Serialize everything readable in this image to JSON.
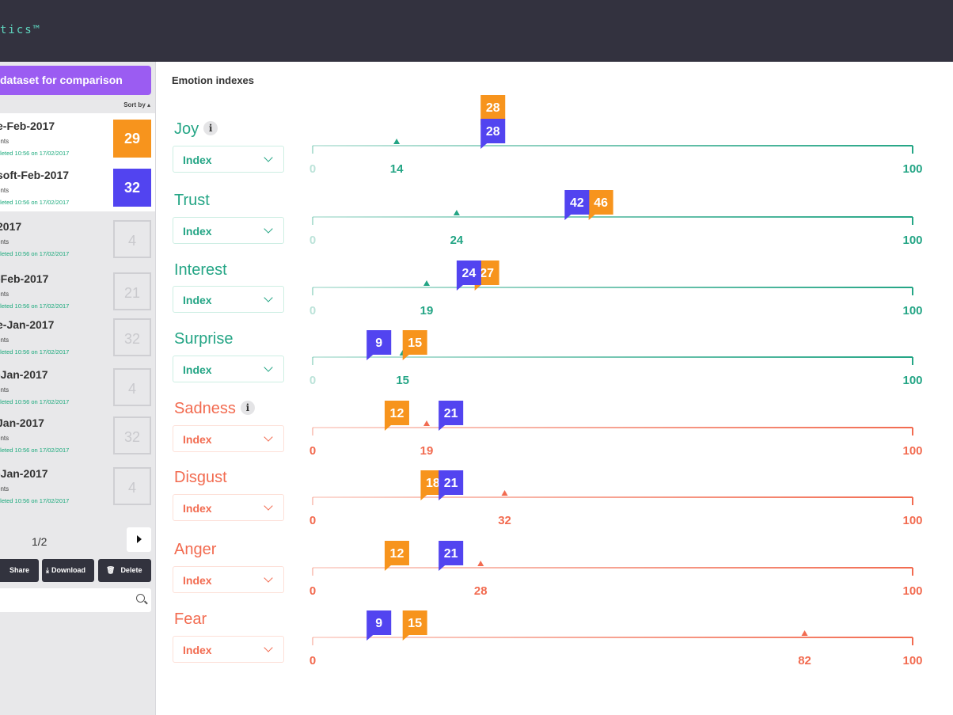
{
  "app": {
    "brand_text": "tics™"
  },
  "sidebar": {
    "add_button_label": "dataset for comparison",
    "sort_label": "Sort by ▴",
    "datasets": [
      {
        "name": "e-Feb-2017",
        "sub": "ents",
        "status": "pleted 10:56 on 17/02/2017",
        "score": "29",
        "style": "orange"
      },
      {
        "name": "soft-Feb-2017",
        "sub": "ents",
        "status": "pleted 10:56 on 17/02/2017",
        "score": "32",
        "style": "blue"
      },
      {
        "name": "2017",
        "sub": "ents",
        "status": "pleted 10:56 on 17/02/2017",
        "score": "4",
        "style": "plain"
      },
      {
        "name": "-Feb-2017",
        "sub": "ents",
        "status": "pleted 10:56 on 17/02/2017",
        "score": "21",
        "style": "plain"
      },
      {
        "name": "e-Jan-2017",
        "sub": "ents",
        "status": "pleted 10:56 on 17/02/2017",
        "score": "32",
        "style": "plain"
      },
      {
        "name": "-Jan-2017",
        "sub": "ents",
        "status": "pleted 10:56 on 17/02/2017",
        "score": "4",
        "style": "plain"
      },
      {
        "name": "Jan-2017",
        "sub": "ents",
        "status": "pleted 10:56 on 17/02/2017",
        "score": "32",
        "style": "plain"
      },
      {
        "name": "-Jan-2017",
        "sub": "ents",
        "status": "pleted 10:56 on 17/02/2017",
        "score": "4",
        "style": "plain"
      }
    ],
    "pager": "1/2",
    "actions": {
      "share": "Share",
      "download": "Download",
      "delete": "Delete"
    }
  },
  "main": {
    "title": "Emotion indexes",
    "select_value": "Index",
    "scale_min": "0",
    "scale_max": "100",
    "colors": {
      "positive": "#24a585",
      "negative": "#f26b50",
      "orange": "#f7941d",
      "blue": "#5244f0"
    },
    "emotions": [
      {
        "name": "Joy",
        "polarity": "positive",
        "info": true,
        "average": 14,
        "orange": 28,
        "blue": 28
      },
      {
        "name": "Trust",
        "polarity": "positive",
        "info": false,
        "average": 24,
        "orange": 46,
        "blue": 42
      },
      {
        "name": "Interest",
        "polarity": "positive",
        "info": false,
        "average": 19,
        "orange": 27,
        "blue": 24
      },
      {
        "name": "Surprise",
        "polarity": "positive",
        "info": false,
        "average": 15,
        "orange": 15,
        "blue": 9
      },
      {
        "name": "Sadness",
        "polarity": "negative",
        "info": true,
        "average": 19,
        "orange": 12,
        "blue": 21
      },
      {
        "name": "Disgust",
        "polarity": "negative",
        "info": false,
        "average": 32,
        "orange": 18,
        "blue": 21
      },
      {
        "name": "Anger",
        "polarity": "negative",
        "info": false,
        "average": 28,
        "orange": 12,
        "blue": 21
      },
      {
        "name": "Fear",
        "polarity": "negative",
        "info": false,
        "average": 82,
        "orange": 15,
        "blue": 9
      }
    ]
  }
}
